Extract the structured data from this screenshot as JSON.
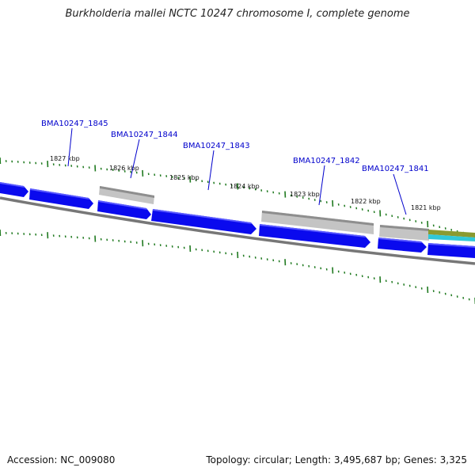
{
  "title": "Burkholderia mallei NCTC 10247 chromosome I, complete genome",
  "footer": {
    "accession": "Accession: NC_009080",
    "summary": "Topology: circular; Length: 3,495,687 bp; Genes: 3,325"
  },
  "colors": {
    "gene_blue": "#0a0aee",
    "gene_gray": "#b8b8b8",
    "backbone": "#777777",
    "tick_green": "#207a20",
    "label_blue": "#0000cc",
    "feature_olive": "#8a9a30",
    "feature_cyan": "#30c8d8"
  },
  "ruler_labels": [
    "1827 kbp",
    "1826 kbp",
    "1825 kbp",
    "1824 kbp",
    "1823 kbp",
    "1822 kbp",
    "1821 kbp"
  ],
  "gene_labels": [
    "BMA10247_1845",
    "BMA10247_1844",
    "BMA10247_1843",
    "BMA10247_1842",
    "BMA10247_1841"
  ]
}
